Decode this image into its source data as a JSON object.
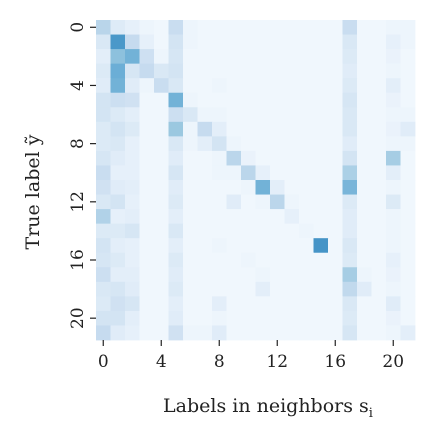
{
  "chart_data": {
    "type": "heatmap",
    "title": "",
    "xlabel": "Labels in neighbors s",
    "xlabel_sub": "i",
    "ylabel": "True label ỹ",
    "rows": 22,
    "cols": 22,
    "x_ticks": [
      0,
      4,
      8,
      12,
      16,
      20
    ],
    "y_ticks": [
      0,
      4,
      8,
      12,
      16,
      20
    ],
    "colormap": "Blues",
    "vmin": 0,
    "vmax": 1,
    "values": [
      [
        0.35,
        0.15,
        0.1,
        0.06,
        0.04,
        0.28,
        0.06,
        0.04,
        0.04,
        0.04,
        0.04,
        0.04,
        0.04,
        0.04,
        0.04,
        0.04,
        0.04,
        0.28,
        0.04,
        0.04,
        0.06,
        0.06
      ],
      [
        0.18,
        0.72,
        0.3,
        0.1,
        0.04,
        0.22,
        0.06,
        0.04,
        0.04,
        0.04,
        0.04,
        0.04,
        0.04,
        0.04,
        0.04,
        0.04,
        0.04,
        0.18,
        0.04,
        0.04,
        0.1,
        0.06
      ],
      [
        0.12,
        0.5,
        0.58,
        0.25,
        0.06,
        0.2,
        0.04,
        0.04,
        0.04,
        0.04,
        0.04,
        0.04,
        0.04,
        0.04,
        0.04,
        0.04,
        0.04,
        0.16,
        0.04,
        0.04,
        0.08,
        0.04
      ],
      [
        0.16,
        0.6,
        0.2,
        0.3,
        0.18,
        0.22,
        0.04,
        0.04,
        0.04,
        0.04,
        0.04,
        0.04,
        0.04,
        0.04,
        0.04,
        0.04,
        0.04,
        0.14,
        0.04,
        0.04,
        0.06,
        0.04
      ],
      [
        0.14,
        0.58,
        0.14,
        0.06,
        0.28,
        0.18,
        0.04,
        0.04,
        0.06,
        0.04,
        0.04,
        0.04,
        0.04,
        0.04,
        0.04,
        0.04,
        0.04,
        0.16,
        0.04,
        0.04,
        0.12,
        0.04
      ],
      [
        0.22,
        0.26,
        0.24,
        0.04,
        0.04,
        0.58,
        0.06,
        0.04,
        0.04,
        0.04,
        0.04,
        0.04,
        0.04,
        0.04,
        0.04,
        0.04,
        0.04,
        0.2,
        0.04,
        0.04,
        0.08,
        0.04
      ],
      [
        0.22,
        0.16,
        0.12,
        0.04,
        0.04,
        0.26,
        0.18,
        0.06,
        0.06,
        0.04,
        0.04,
        0.04,
        0.04,
        0.04,
        0.04,
        0.04,
        0.04,
        0.18,
        0.04,
        0.04,
        0.06,
        0.06
      ],
      [
        0.16,
        0.22,
        0.16,
        0.04,
        0.04,
        0.46,
        0.06,
        0.3,
        0.12,
        0.04,
        0.04,
        0.04,
        0.04,
        0.04,
        0.04,
        0.04,
        0.04,
        0.18,
        0.04,
        0.04,
        0.08,
        0.14
      ],
      [
        0.16,
        0.18,
        0.1,
        0.04,
        0.04,
        0.18,
        0.06,
        0.12,
        0.22,
        0.06,
        0.04,
        0.04,
        0.04,
        0.04,
        0.04,
        0.04,
        0.04,
        0.14,
        0.04,
        0.04,
        0.06,
        0.06
      ],
      [
        0.2,
        0.14,
        0.1,
        0.04,
        0.04,
        0.14,
        0.04,
        0.04,
        0.06,
        0.34,
        0.08,
        0.04,
        0.04,
        0.04,
        0.04,
        0.04,
        0.04,
        0.22,
        0.04,
        0.04,
        0.42,
        0.04
      ],
      [
        0.28,
        0.1,
        0.1,
        0.04,
        0.04,
        0.2,
        0.04,
        0.04,
        0.06,
        0.06,
        0.34,
        0.1,
        0.04,
        0.04,
        0.04,
        0.04,
        0.04,
        0.4,
        0.04,
        0.04,
        0.12,
        0.04
      ],
      [
        0.24,
        0.14,
        0.12,
        0.04,
        0.04,
        0.14,
        0.04,
        0.04,
        0.04,
        0.04,
        0.06,
        0.58,
        0.12,
        0.04,
        0.04,
        0.04,
        0.04,
        0.56,
        0.04,
        0.04,
        0.06,
        0.04
      ],
      [
        0.18,
        0.22,
        0.1,
        0.04,
        0.04,
        0.16,
        0.04,
        0.04,
        0.04,
        0.14,
        0.04,
        0.06,
        0.34,
        0.06,
        0.04,
        0.04,
        0.04,
        0.16,
        0.04,
        0.04,
        0.16,
        0.04
      ],
      [
        0.38,
        0.1,
        0.12,
        0.04,
        0.04,
        0.12,
        0.04,
        0.04,
        0.04,
        0.04,
        0.04,
        0.04,
        0.04,
        0.1,
        0.04,
        0.04,
        0.04,
        0.14,
        0.04,
        0.04,
        0.06,
        0.04
      ],
      [
        0.16,
        0.16,
        0.2,
        0.04,
        0.04,
        0.18,
        0.04,
        0.04,
        0.04,
        0.04,
        0.04,
        0.04,
        0.04,
        0.04,
        0.06,
        0.04,
        0.04,
        0.14,
        0.04,
        0.04,
        0.06,
        0.04
      ],
      [
        0.22,
        0.12,
        0.1,
        0.04,
        0.04,
        0.12,
        0.04,
        0.04,
        0.06,
        0.04,
        0.04,
        0.04,
        0.04,
        0.04,
        0.04,
        0.74,
        0.04,
        0.18,
        0.04,
        0.04,
        0.06,
        0.04
      ],
      [
        0.2,
        0.16,
        0.1,
        0.04,
        0.04,
        0.16,
        0.04,
        0.04,
        0.04,
        0.04,
        0.06,
        0.04,
        0.04,
        0.04,
        0.04,
        0.04,
        0.04,
        0.16,
        0.04,
        0.04,
        0.1,
        0.04
      ],
      [
        0.26,
        0.12,
        0.12,
        0.04,
        0.04,
        0.14,
        0.04,
        0.04,
        0.04,
        0.04,
        0.04,
        0.06,
        0.04,
        0.04,
        0.04,
        0.04,
        0.04,
        0.42,
        0.06,
        0.04,
        0.08,
        0.04
      ],
      [
        0.18,
        0.2,
        0.14,
        0.04,
        0.04,
        0.16,
        0.04,
        0.04,
        0.04,
        0.04,
        0.04,
        0.12,
        0.04,
        0.04,
        0.04,
        0.04,
        0.04,
        0.32,
        0.14,
        0.04,
        0.06,
        0.04
      ],
      [
        0.16,
        0.24,
        0.2,
        0.04,
        0.04,
        0.12,
        0.04,
        0.04,
        0.12,
        0.04,
        0.04,
        0.04,
        0.04,
        0.04,
        0.04,
        0.04,
        0.04,
        0.18,
        0.04,
        0.04,
        0.14,
        0.04
      ],
      [
        0.22,
        0.22,
        0.12,
        0.04,
        0.04,
        0.14,
        0.04,
        0.04,
        0.06,
        0.04,
        0.04,
        0.04,
        0.04,
        0.04,
        0.04,
        0.04,
        0.04,
        0.16,
        0.04,
        0.04,
        0.08,
        0.04
      ],
      [
        0.3,
        0.14,
        0.1,
        0.04,
        0.04,
        0.24,
        0.06,
        0.06,
        0.14,
        0.04,
        0.04,
        0.04,
        0.04,
        0.04,
        0.04,
        0.04,
        0.04,
        0.2,
        0.04,
        0.04,
        0.06,
        0.12
      ]
    ]
  }
}
